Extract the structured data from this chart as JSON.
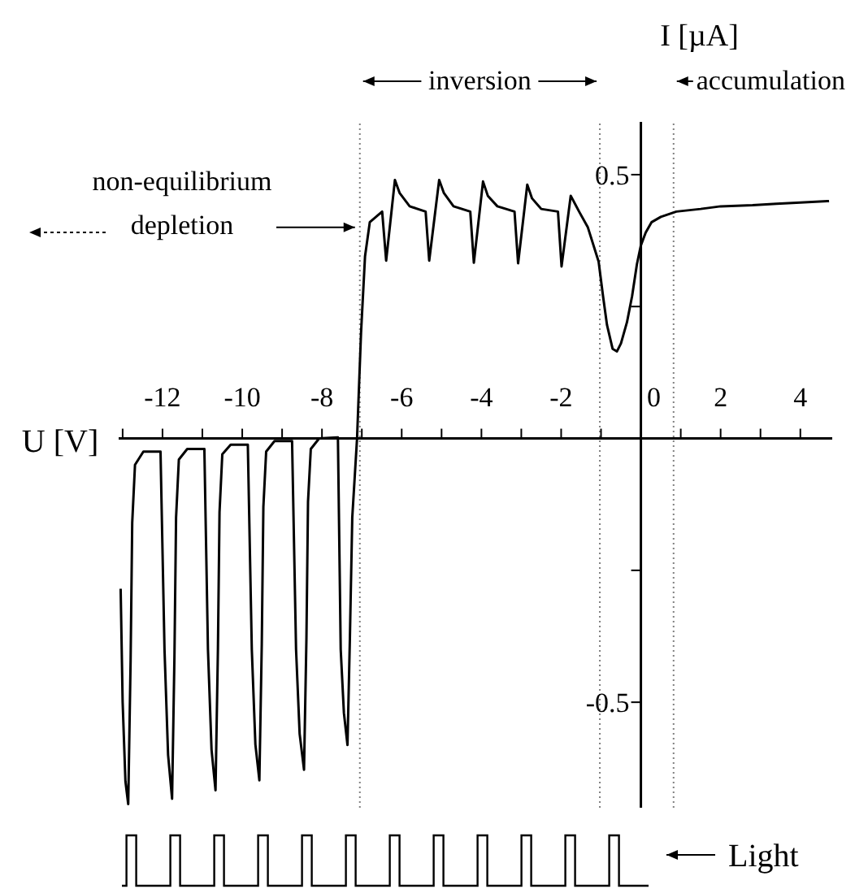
{
  "chart_data": {
    "type": "line",
    "xlabel": "U [V]",
    "ylabel": "I [µA]",
    "xlim": [
      -13.1,
      4.8
    ],
    "ylim": [
      -0.7,
      0.6
    ],
    "xticks": [
      {
        "value": -13,
        "label": null
      },
      -12,
      {
        "value": -11,
        "label": null
      },
      -10,
      {
        "value": -9,
        "label": null
      },
      -8,
      {
        "value": -7,
        "label": null
      },
      -6,
      {
        "value": -5,
        "label": null
      },
      -4,
      {
        "value": -3,
        "label": null
      },
      -2,
      {
        "value": -1,
        "label": null
      },
      0,
      {
        "value": 1,
        "label": null
      },
      2,
      {
        "value": 3,
        "label": null
      },
      4
    ],
    "yticks": [
      -0.5,
      {
        "value": -0.25,
        "label": null
      },
      {
        "value": 0.25,
        "label": null
      },
      0.5
    ],
    "ref_lines": [
      {
        "axis": "x",
        "value": -7.05,
        "color": "#808080",
        "line_style": "dotted"
      },
      {
        "axis": "x",
        "value": -1.03,
        "color": "#808080",
        "line_style": "dotted"
      },
      {
        "axis": "x",
        "value": 0.82,
        "color": "#808080",
        "line_style": "dotted"
      }
    ],
    "annotations": [
      "inversion",
      "accumulation",
      {
        "text": "non-equilibrium depletion",
        "x": -7.05,
        "y": 0.4
      },
      "Light"
    ],
    "series": [
      {
        "color": "#000000",
        "x": [
          -13.05,
          -13.0,
          -12.93,
          -12.86,
          -12.8,
          -12.76,
          -12.69,
          -12.48,
          -12.05,
          -11.95,
          -11.86,
          -11.76,
          -11.7,
          -11.66,
          -11.59,
          -11.38,
          -10.95,
          -10.86,
          -10.77,
          -10.67,
          -10.61,
          -10.57,
          -10.5,
          -10.29,
          -9.86,
          -9.76,
          -9.67,
          -9.57,
          -9.51,
          -9.47,
          -9.4,
          -9.19,
          -8.75,
          -8.65,
          -8.56,
          -8.45,
          -8.39,
          -8.35,
          -8.28,
          -8.07,
          -7.6,
          -7.53,
          -7.45,
          -7.36,
          -7.3,
          -7.24,
          -7.12,
          -7.02,
          -6.92,
          -6.8,
          -6.49,
          -6.39,
          -6.17,
          -6.05,
          -5.8,
          -5.4,
          -5.31,
          -5.06,
          -4.94,
          -4.7,
          -4.28,
          -4.19,
          -3.96,
          -3.84,
          -3.6,
          -3.17,
          -3.08,
          -2.85,
          -2.73,
          -2.5,
          -2.08,
          -1.99,
          -1.76,
          -1.55,
          -1.33,
          -1.06,
          -0.95,
          -0.85,
          -0.71,
          -0.6,
          -0.5,
          -0.35,
          -0.22,
          -0.1,
          0,
          0.12,
          0.27,
          0.5,
          0.89,
          1.5,
          2.0,
          2.8,
          3.4,
          4.0,
          4.72
        ],
        "values": [
          -0.285,
          -0.5,
          -0.65,
          -0.693,
          -0.42,
          -0.16,
          -0.05,
          -0.025,
          -0.025,
          -0.4,
          -0.6,
          -0.683,
          -0.41,
          -0.15,
          -0.04,
          -0.02,
          -0.02,
          -0.4,
          -0.59,
          -0.667,
          -0.4,
          -0.14,
          -0.03,
          -0.012,
          -0.012,
          -0.4,
          -0.58,
          -0.648,
          -0.39,
          -0.13,
          -0.025,
          -0.005,
          -0.005,
          -0.4,
          -0.56,
          -0.628,
          -0.38,
          -0.12,
          -0.02,
          0,
          0.002,
          -0.4,
          -0.52,
          -0.581,
          -0.38,
          -0.15,
          0,
          0.2,
          0.345,
          0.41,
          0.43,
          0.337,
          0.49,
          0.465,
          0.44,
          0.43,
          0.337,
          0.49,
          0.465,
          0.44,
          0.43,
          0.333,
          0.487,
          0.46,
          0.44,
          0.43,
          0.332,
          0.481,
          0.455,
          0.435,
          0.43,
          0.326,
          0.46,
          0.43,
          0.4,
          0.335,
          0.27,
          0.215,
          0.17,
          0.165,
          0.18,
          0.22,
          0.27,
          0.33,
          0.366,
          0.39,
          0.41,
          0.42,
          0.43,
          0.435,
          0.44,
          0.442,
          0.445,
          0.447,
          0.45
        ]
      }
    ]
  }
}
